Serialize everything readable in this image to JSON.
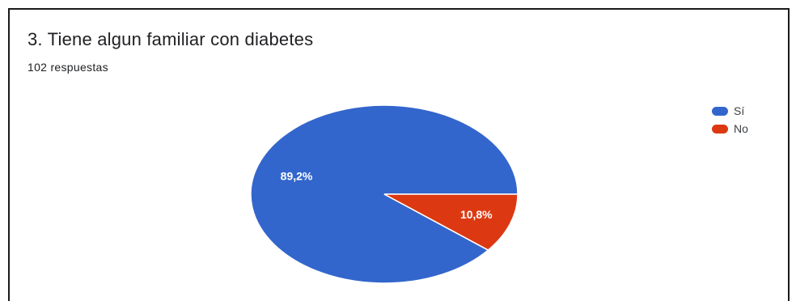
{
  "title": "3. Tiene algun familiar con diabetes",
  "subtitle": "102 respuestas",
  "chart_data": {
    "type": "pie",
    "title": "3. Tiene algun familiar con diabetes",
    "categories": [
      "Sí",
      "No"
    ],
    "values": [
      89.2,
      10.8
    ],
    "labels": [
      "89,2%",
      "10,8%"
    ],
    "colors": [
      "#3366cc",
      "#dc3912"
    ],
    "legend_position": "top-right"
  }
}
